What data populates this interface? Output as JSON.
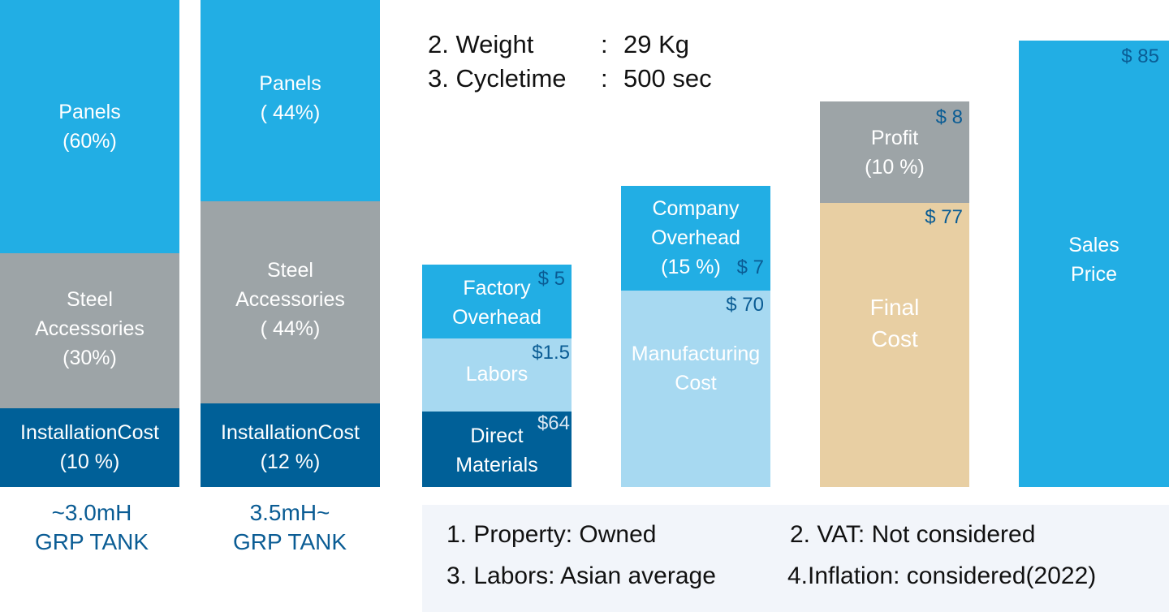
{
  "colors": {
    "panels": "#22aee4",
    "steel": "#9da4a7",
    "installation": "#006098",
    "labors": "#a7d9f1",
    "final_cost": "#e8cfa3",
    "value_label": "#0a5c94"
  },
  "specs": [
    {
      "label": "2. Weight",
      "sep": ":",
      "value": "29 Kg"
    },
    {
      "label": "3. Cycletime",
      "sep": ":",
      "value": "500 sec"
    }
  ],
  "chart_data": {
    "type": "bar",
    "tanks": [
      {
        "caption": [
          "~3.0mH",
          "GRP TANK"
        ],
        "segments": [
          {
            "label": [
              "Panels",
              "(60%)"
            ],
            "percent": 60
          },
          {
            "label": [
              "Steel",
              "Accessories",
              "(30%)"
            ],
            "percent": 30
          },
          {
            "label": [
              "InstallationCost",
              "(10 %)"
            ],
            "percent": 10
          }
        ]
      },
      {
        "caption": [
          "3.5mH~",
          "GRP TANK"
        ],
        "segments": [
          {
            "label": [
              "Panels",
              "( 44%)"
            ],
            "percent": 44
          },
          {
            "label": [
              "Steel",
              "Accessories",
              "( 44%)"
            ],
            "percent": 44
          },
          {
            "label": [
              "InstallationCost",
              "(12 %)"
            ],
            "percent": 12
          }
        ]
      }
    ],
    "cost_steps": [
      {
        "segments": [
          {
            "label": [
              "Factory",
              "Overhead"
            ],
            "value_label": "$ 5",
            "value": 5
          },
          {
            "label": [
              "Labors"
            ],
            "value_label": "$1.5",
            "value": 1.5
          },
          {
            "label": [
              "Direct",
              "Materials"
            ],
            "value_label": "$64",
            "value": 64
          }
        ]
      },
      {
        "segments": [
          {
            "label": [
              "Company",
              "Overhead",
              "(15 %)"
            ],
            "value_label": "$ 7",
            "value": 7
          },
          {
            "label": [
              "Manufacturing",
              "Cost"
            ],
            "value_label": "$ 70",
            "value": 70
          }
        ]
      },
      {
        "segments": [
          {
            "label": [
              "Profit",
              "(10 %)"
            ],
            "value_label": "$ 8",
            "value": 8
          },
          {
            "label": [
              "Final",
              "Cost"
            ],
            "value_label": "$ 77",
            "value": 77
          }
        ]
      },
      {
        "segments": [
          {
            "label": [
              "Sales",
              "Price"
            ],
            "value_label": "$ 85",
            "value": 85
          }
        ]
      }
    ]
  },
  "notes": [
    "1. Property: Owned",
    "2. VAT: Not considered",
    "3. Labors: Asian average",
    "4.Inflation: considered(2022)"
  ]
}
